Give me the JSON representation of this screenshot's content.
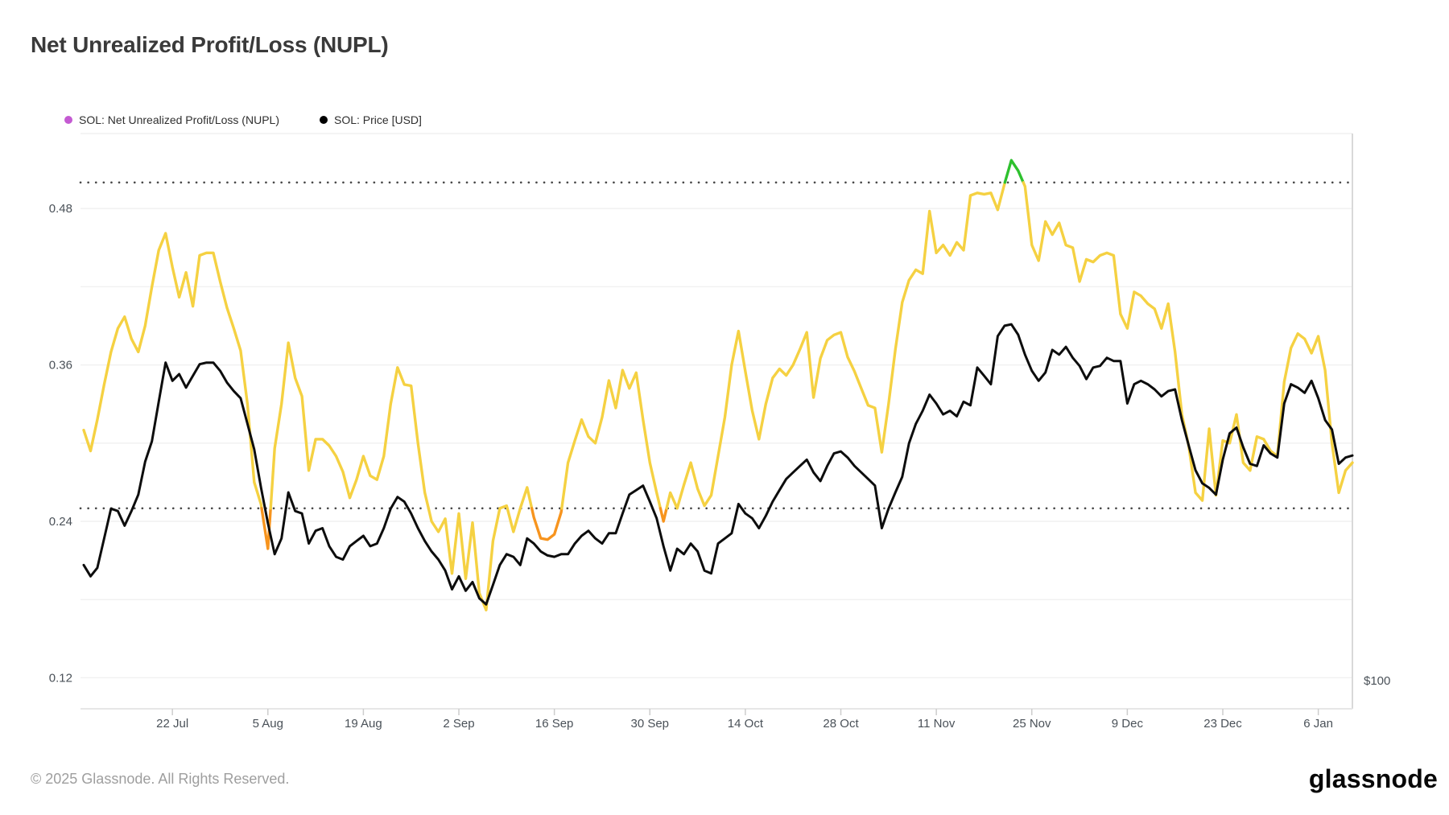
{
  "title": "Net Unrealized Profit/Loss (NUPL)",
  "legend": {
    "items": [
      {
        "label": "SOL: Net Unrealized Profit/Loss (NUPL)",
        "color": "#C45AD2"
      },
      {
        "label": "SOL: Price [USD]",
        "color": "#000000"
      }
    ]
  },
  "footer": {
    "copyright": "© 2025 Glassnode. All Rights Reserved.",
    "brand": "glassnode"
  },
  "chart_data": {
    "type": "line",
    "title": "Net Unrealized Profit/Loss (NUPL)",
    "start_date": "2024-07-09",
    "interval_days": 1,
    "grid": "horizontal",
    "x_ticks": [
      {
        "index": 13,
        "label": "22 Jul"
      },
      {
        "index": 27,
        "label": "5 Aug"
      },
      {
        "index": 41,
        "label": "19 Aug"
      },
      {
        "index": 55,
        "label": "2 Sep"
      },
      {
        "index": 69,
        "label": "16 Sep"
      },
      {
        "index": 83,
        "label": "30 Sep"
      },
      {
        "index": 97,
        "label": "14 Oct"
      },
      {
        "index": 111,
        "label": "28 Oct"
      },
      {
        "index": 125,
        "label": "11 Nov"
      },
      {
        "index": 139,
        "label": "25 Nov"
      },
      {
        "index": 153,
        "label": "9 Dec"
      },
      {
        "index": 167,
        "label": "23 Dec"
      },
      {
        "index": 181,
        "label": "6 Jan"
      }
    ],
    "y_axis_left": {
      "metric": "NUPL",
      "tick_labels": [
        "0.48",
        "0.36",
        "0.24",
        "0.12"
      ],
      "tick_values": [
        0.48,
        0.36,
        0.24,
        0.12
      ],
      "gridline_values": [
        0.48,
        0.42,
        0.36,
        0.3,
        0.24,
        0.18,
        0.12
      ],
      "threshold_lines": [
        0.5,
        0.25
      ],
      "range": [
        0.115,
        0.535
      ]
    },
    "y_axis_right": {
      "metric": "Price USD",
      "scale": "log",
      "tick_labels": [
        "$100"
      ],
      "tick_values": [
        100
      ]
    },
    "nupl_bands": [
      {
        "upto": 0.25,
        "color": "#F7941E",
        "name": "below-0.25-orange"
      },
      {
        "upto": 0.5,
        "color": "#F5D142",
        "name": "0.25-to-0.5-yellow"
      },
      {
        "upto": 1.0,
        "color": "#2EC12E",
        "name": "above-0.5-green"
      }
    ],
    "series": [
      {
        "name": "SOL: Net Unrealized Profit/Loss (NUPL)",
        "axis": "left",
        "values": [
          0.31,
          0.294,
          0.318,
          0.345,
          0.37,
          0.388,
          0.397,
          0.38,
          0.37,
          0.39,
          0.42,
          0.448,
          0.461,
          0.435,
          0.412,
          0.431,
          0.405,
          0.444,
          0.446,
          0.446,
          0.424,
          0.404,
          0.388,
          0.371,
          0.33,
          0.27,
          0.253,
          0.219,
          0.296,
          0.33,
          0.377,
          0.35,
          0.336,
          0.279,
          0.303,
          0.303,
          0.298,
          0.29,
          0.278,
          0.258,
          0.272,
          0.29,
          0.275,
          0.272,
          0.29,
          0.33,
          0.358,
          0.345,
          0.344,
          0.3,
          0.262,
          0.24,
          0.232,
          0.242,
          0.2,
          0.246,
          0.196,
          0.239,
          0.185,
          0.172,
          0.225,
          0.25,
          0.252,
          0.232,
          0.25,
          0.266,
          0.243,
          0.227,
          0.226,
          0.23,
          0.247,
          0.285,
          0.302,
          0.318,
          0.305,
          0.3,
          0.32,
          0.348,
          0.327,
          0.356,
          0.342,
          0.354,
          0.318,
          0.285,
          0.262,
          0.24,
          0.262,
          0.25,
          0.268,
          0.285,
          0.265,
          0.252,
          0.26,
          0.29,
          0.32,
          0.36,
          0.386,
          0.355,
          0.325,
          0.303,
          0.33,
          0.35,
          0.357,
          0.352,
          0.36,
          0.372,
          0.385,
          0.335,
          0.365,
          0.379,
          0.383,
          0.385,
          0.366,
          0.355,
          0.342,
          0.329,
          0.327,
          0.293,
          0.33,
          0.372,
          0.408,
          0.425,
          0.433,
          0.43,
          0.478,
          0.446,
          0.452,
          0.444,
          0.454,
          0.448,
          0.49,
          0.492,
          0.491,
          0.492,
          0.479,
          0.499,
          0.517,
          0.509,
          0.497,
          0.452,
          0.44,
          0.47,
          0.46,
          0.469,
          0.452,
          0.45,
          0.424,
          0.441,
          0.439,
          0.444,
          0.446,
          0.444,
          0.399,
          0.388,
          0.416,
          0.413,
          0.407,
          0.403,
          0.388,
          0.407,
          0.37,
          0.322,
          0.298,
          0.262,
          0.256,
          0.311,
          0.26,
          0.302,
          0.3,
          0.322,
          0.285,
          0.279,
          0.305,
          0.303,
          0.294,
          0.29,
          0.347,
          0.373,
          0.384,
          0.38,
          0.369,
          0.382,
          0.356,
          0.3,
          0.262,
          0.279,
          0.285
        ]
      },
      {
        "name": "SOL: Price [USD]",
        "axis": "right",
        "color": "#0D0D0D",
        "values": [
          136,
          132,
          135,
          146,
          158,
          157,
          151,
          157,
          164,
          179,
          189,
          210,
          233,
          222,
          226,
          218,
          225,
          232,
          233,
          233,
          228,
          221,
          216,
          212,
          198,
          185,
          167,
          152,
          140,
          146,
          165,
          157,
          156,
          144,
          149,
          150,
          143,
          139,
          138,
          143,
          145,
          147,
          143,
          144,
          150,
          158,
          163,
          161,
          156,
          150,
          145,
          141,
          138,
          134,
          127.5,
          132,
          127,
          130,
          124.5,
          122.5,
          129,
          136,
          140,
          139,
          136,
          146,
          144,
          141,
          139.5,
          139,
          140,
          140,
          144,
          147,
          149,
          146,
          144,
          148,
          148,
          156,
          164,
          166,
          168,
          161,
          154,
          143,
          134,
          142,
          140,
          144,
          141,
          134,
          133,
          144,
          146,
          148,
          160,
          156,
          154,
          150,
          155,
          161,
          166,
          171,
          174,
          177,
          180,
          174,
          170,
          177,
          183,
          184,
          181,
          177,
          174,
          171,
          168,
          150,
          158,
          165,
          172,
          188,
          198,
          205,
          214,
          209,
          203,
          205,
          202,
          210,
          208,
          230,
          225,
          220,
          250,
          257,
          258,
          251,
          238,
          228,
          222,
          227,
          241,
          238,
          243,
          236,
          231,
          223,
          230,
          231,
          236,
          234,
          234,
          209,
          220,
          222,
          220,
          217,
          213,
          216,
          217,
          200,
          187,
          175,
          169,
          167,
          164,
          180,
          193,
          196,
          186,
          178,
          177,
          187,
          183,
          181,
          209,
          220,
          218,
          215,
          222,
          212,
          200,
          195,
          178,
          181,
          182
        ]
      }
    ]
  },
  "style_colors": {
    "gridline": "#F1F1F1",
    "plot_top_border": "#F1F1F1",
    "plot_right_border": "#D9D9D9",
    "axis_line": "#E7E7E7",
    "tick_mark": "#CDCDCD",
    "threshold_dots": "#474747",
    "axis_text": "#4A5158"
  }
}
